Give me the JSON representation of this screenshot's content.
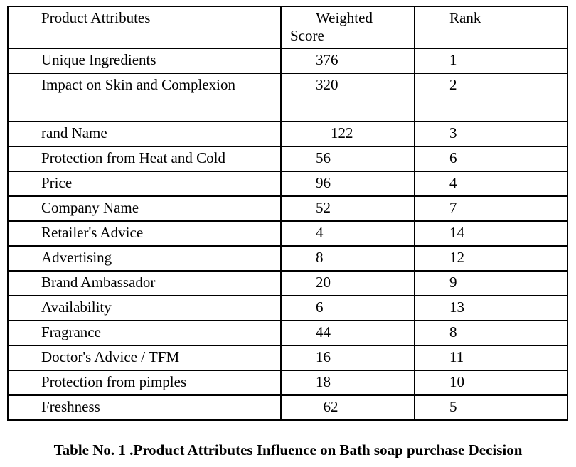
{
  "table": {
    "columns": [
      "Product Attributes",
      "Weighted\nScore",
      "Rank"
    ],
    "rows": [
      {
        "attribute": "Unique Ingredients",
        "weighted_score": "376",
        "rank": "1"
      },
      {
        "attribute": "Impact on Skin and Complexion",
        "weighted_score": "320",
        "rank": "2"
      },
      {
        "attribute": "rand Name",
        "weighted_score": "    122",
        "rank": "3"
      },
      {
        "attribute": "Protection from Heat and Cold",
        "weighted_score": "56",
        "rank": "6"
      },
      {
        "attribute": "Price",
        "weighted_score": "96",
        "rank": "4"
      },
      {
        "attribute": "Company Name",
        "weighted_score": "52",
        "rank": "7"
      },
      {
        "attribute": "Retailer's Advice",
        "weighted_score": "4",
        "rank": "14"
      },
      {
        "attribute": "Advertising",
        "weighted_score": "8",
        "rank": "12"
      },
      {
        "attribute": "Brand Ambassador",
        "weighted_score": "20",
        "rank": "9"
      },
      {
        "attribute": "Availability",
        "weighted_score": "6",
        "rank": "13"
      },
      {
        "attribute": "Fragrance",
        "weighted_score": "44",
        "rank": "8"
      },
      {
        "attribute": "Doctor's Advice / TFM",
        "weighted_score": "16",
        "rank": "11"
      },
      {
        "attribute": "Protection from pimples",
        "weighted_score": "18",
        "rank": "10"
      },
      {
        "attribute": "Freshness",
        "weighted_score": "  62",
        "rank": "5"
      }
    ]
  },
  "caption": "Table No. 1 .Product Attributes Influence on Bath soap purchase Decision"
}
